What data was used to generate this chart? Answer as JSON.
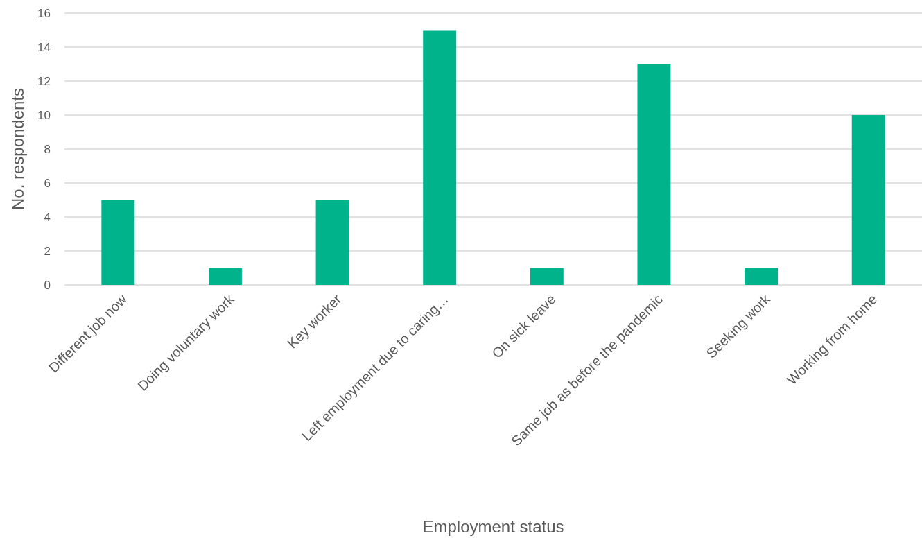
{
  "chart_data": {
    "type": "bar",
    "xlabel": "Employment status",
    "ylabel": "No. respondents",
    "categories": [
      "Different job now",
      "Doing voluntary work",
      "Key worker",
      "Left employment due to caring…",
      "On sick leave",
      "Same job as before the pandemic",
      "Seeking work",
      "Working from home"
    ],
    "values": [
      5,
      1,
      5,
      15,
      1,
      13,
      1,
      10
    ],
    "color": "#00b38a",
    "ylim": [
      0,
      16
    ],
    "yticks": [
      0,
      2,
      4,
      6,
      8,
      10,
      12,
      14,
      16
    ],
    "grid": "y"
  }
}
